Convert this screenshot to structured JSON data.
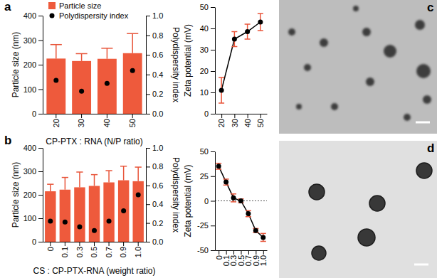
{
  "chart_data": [
    {
      "type": "bar",
      "annotations": [
        "a"
      ],
      "categories": [
        "20",
        "30",
        "40",
        "50"
      ],
      "x_label": "CP-PTX : RNA (N/P ratio)",
      "y_label": "Particle size (nm)",
      "y2_label": "Polydispersity index",
      "ylim": [
        0,
        400
      ],
      "yticks": [
        0,
        100,
        200,
        300,
        400
      ],
      "y2lim": [
        0,
        1
      ],
      "y2ticks": [
        {
          "value": 0,
          "label": "0.0"
        },
        0.2,
        0.4,
        0.6,
        0.8,
        {
          "value": 1,
          "label": "1.0"
        }
      ],
      "legend": "top-left",
      "series": [
        {
          "name": "Particle size",
          "type": "bar",
          "color": "#ee5a3c",
          "values": [
            225,
            215,
            224,
            247
          ],
          "errors": [
            57,
            30,
            43,
            80
          ]
        },
        {
          "name": "Polydispersity index",
          "type": "scatter",
          "marker": "circle",
          "color": "#000000",
          "axis": "y2",
          "values": [
            0.34,
            0.23,
            0.31,
            0.44
          ]
        }
      ]
    },
    {
      "type": "line",
      "categories": [
        "20",
        "30",
        "40",
        "50"
      ],
      "y_label": "Zeta potential (mV)",
      "ylim": [
        0,
        50
      ],
      "yticks": [
        0,
        10,
        20,
        30,
        40,
        50
      ],
      "series": [
        {
          "color": "#000000",
          "marker": "circle",
          "values": [
            11,
            35,
            38.5,
            43
          ],
          "errors": [
            6,
            3.5,
            3.5,
            4
          ]
        }
      ]
    },
    {
      "type": "bar",
      "annotations": [
        "b"
      ],
      "categories": [
        "0",
        "0.1",
        "0.3",
        "0.5",
        "0.7",
        "0.9",
        "1.0"
      ],
      "x_label": "CS : CP-PTX-RNA (weight ratio)",
      "y_label": "Particle size (nm)",
      "y2_label": "Polydispersity index",
      "ylim": [
        0,
        400
      ],
      "yticks": [
        0,
        100,
        200,
        300,
        400
      ],
      "y2lim": [
        0,
        1
      ],
      "y2ticks": [
        {
          "value": 0,
          "label": "0.0"
        },
        0.2,
        0.4,
        0.6,
        0.8,
        {
          "value": 1,
          "label": "1.0"
        }
      ],
      "series": [
        {
          "type": "bar",
          "color": "#ee5a3c",
          "values": [
            215,
            222,
            232,
            238,
            253,
            262,
            258
          ],
          "errors": [
            30,
            52,
            65,
            48,
            50,
            60,
            60
          ]
        },
        {
          "type": "scatter",
          "marker": "circle",
          "color": "#000000",
          "axis": "y2",
          "values": [
            0.22,
            0.21,
            0.16,
            0.12,
            0.22,
            0.33,
            0.5
          ]
        }
      ]
    },
    {
      "type": "line",
      "categories": [
        "0",
        "0.1",
        "0.3",
        "0.5",
        "0.7",
        "0.9",
        "1.0"
      ],
      "y_label": "Zeta potential (mV)",
      "ylim": [
        -50,
        50
      ],
      "yticks": [
        -50,
        -25,
        0,
        25,
        50
      ],
      "hline": 0,
      "series": [
        {
          "color": "#000000",
          "marker": "circle",
          "values": [
            35,
            19,
            3,
            0,
            -13,
            -30,
            -37
          ],
          "errors": [
            3,
            3,
            4,
            2,
            3,
            2,
            4
          ]
        }
      ]
    }
  ],
  "images": [
    {
      "panel": "c"
    },
    {
      "panel": "d"
    }
  ]
}
